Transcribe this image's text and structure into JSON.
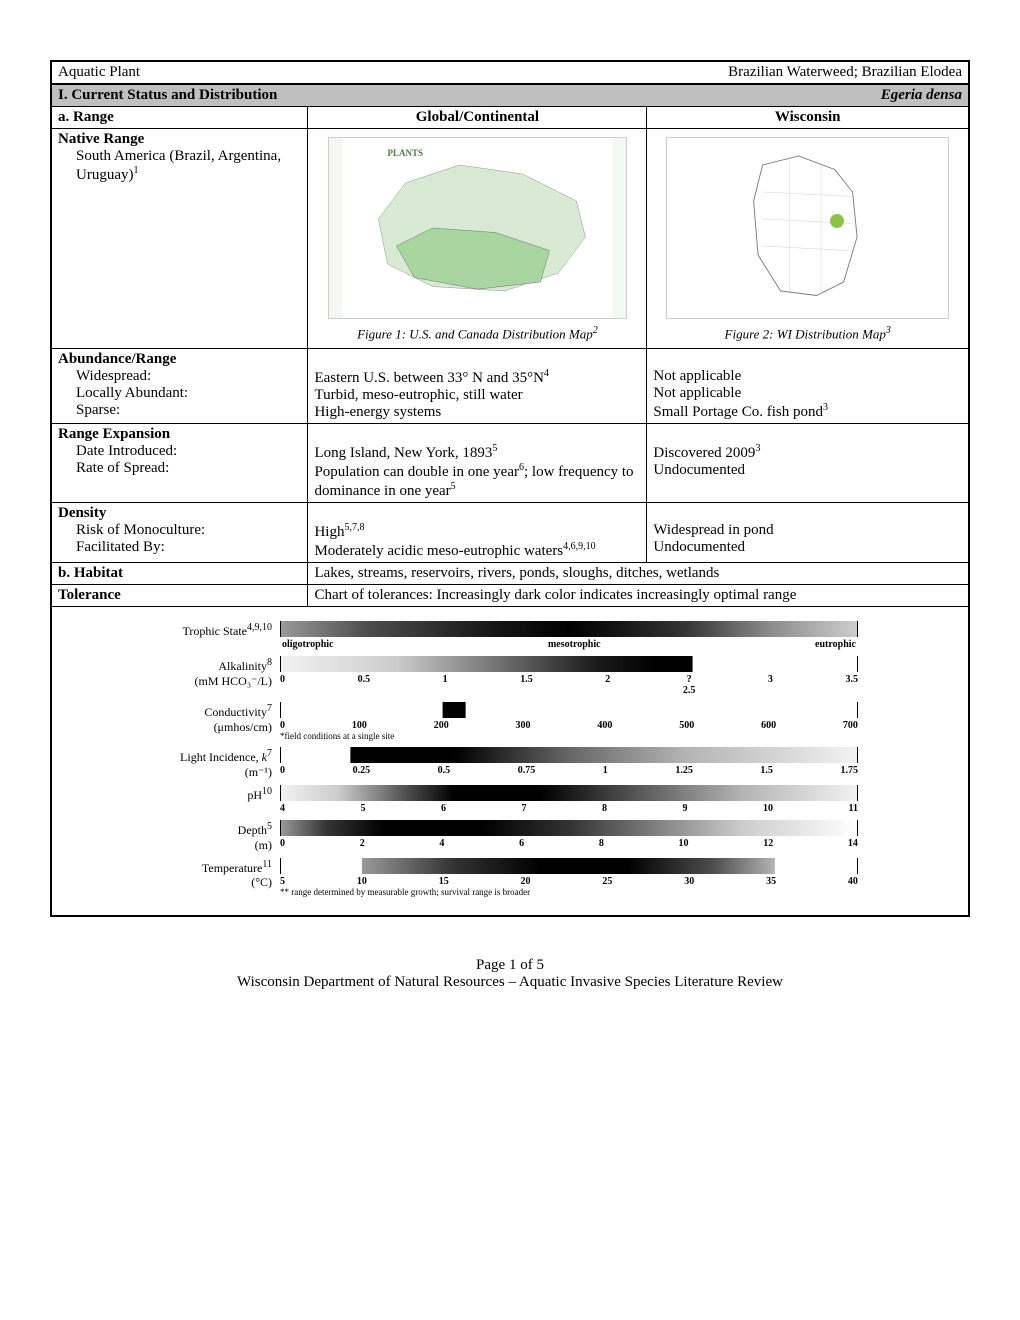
{
  "header": {
    "left": "Aquatic Plant",
    "right": "Brazilian Waterweed; Brazilian Elodea"
  },
  "grayHeader": {
    "left": "I. Current Status and Distribution",
    "right": "Egeria densa"
  },
  "colHeads": {
    "c1": "a. Range",
    "c2": "Global/Continental",
    "c3": "Wisconsin"
  },
  "nativeRange": {
    "label": "Native Range",
    "text": "South America (Brazil, Argentina, Uruguay)",
    "sup": "1"
  },
  "fig1": {
    "caption": "Figure 1: U.S. and Canada Distribution Map",
    "sup": "2",
    "alt": "US/Canada map"
  },
  "fig2": {
    "caption": "Figure 2: WI Distribution Map",
    "sup": "3",
    "alt": "Wisconsin map"
  },
  "abundance": {
    "label": "Abundance/Range",
    "rows": [
      {
        "l": "Widespread:",
        "c2a": "Eastern U.S. between 33° N and 35°N",
        "c2sup": "4",
        "c3": "Not applicable"
      },
      {
        "l": "Locally Abundant:",
        "c2a": "Turbid, meso-eutrophic, still water",
        "c3": "Not applicable"
      },
      {
        "l": "Sparse:",
        "c2a": "High-energy systems",
        "c3": "Small Portage Co. fish pond",
        "c3sup": "3"
      }
    ]
  },
  "rangeExp": {
    "label": "Range Expansion",
    "rows": [
      {
        "l": "Date Introduced:",
        "c2a": "Long Island, New York, 1893",
        "c2sup": "5",
        "c3": "Discovered 2009",
        "c3sup": "3"
      },
      {
        "l": "Rate of Spread:",
        "c2a": "Population can double in one year",
        "c2sup": "6",
        "c2b": "; low frequency to dominance in one year",
        "c2bsup": "5",
        "c3": "Undocumented"
      }
    ]
  },
  "density": {
    "label": "Density",
    "rows": [
      {
        "l": "Risk of Monoculture:",
        "c2a": "High",
        "c2sup": "5,7,8",
        "c3": "Widespread in pond"
      },
      {
        "l": "Facilitated By:",
        "c2a": "Moderately acidic meso-eutrophic waters",
        "c2sup": "4,6,9,10",
        "c3": "Undocumented"
      }
    ]
  },
  "habitat": {
    "label": "b. Habitat",
    "text": "Lakes, streams, reservoirs, rivers, ponds, sloughs, ditches, wetlands"
  },
  "tolerance": {
    "label": "Tolerance",
    "text": "Chart of tolerances: Increasingly dark color indicates increasingly optimal range"
  },
  "tolChart": {
    "background": "#ffffff",
    "items": [
      {
        "label": "Trophic State",
        "sup": "4,9,10",
        "sub": "",
        "type": "categorical",
        "catLabels": [
          "oligotrophic",
          "mesotrophic",
          "eutrophic"
        ],
        "gradient": [
          [
            0,
            60
          ],
          [
            15,
            30
          ],
          [
            35,
            10
          ],
          [
            50,
            0
          ],
          [
            70,
            20
          ],
          [
            85,
            55
          ],
          [
            100,
            80
          ]
        ]
      },
      {
        "label": "Alkalinity",
        "sup": "8",
        "sub": "(mM HCO₃⁻/L)",
        "ticks": [
          "0",
          "0.5",
          "1",
          "1.5",
          "2",
          "2.5",
          "3",
          "3.5"
        ],
        "question": "?",
        "gradient": [
          [
            0,
            95
          ],
          [
            20,
            80
          ],
          [
            40,
            40
          ],
          [
            55,
            10
          ],
          [
            65,
            0
          ],
          [
            71.4,
            0
          ],
          [
            71.5,
            100
          ],
          [
            100,
            100
          ]
        ]
      },
      {
        "label": "Conductivity",
        "sup": "7",
        "sub": "(μmhos/cm)",
        "ticks": [
          "0",
          "100",
          "200",
          "300",
          "400",
          "500",
          "600",
          "700"
        ],
        "note": "*field conditions at a single site",
        "gradient": [
          [
            0,
            100
          ],
          [
            28,
            100
          ],
          [
            28.1,
            0
          ],
          [
            32,
            0
          ],
          [
            32.1,
            100
          ],
          [
            100,
            100
          ]
        ]
      },
      {
        "label": "Light Incidence, ",
        "labelItalic": "k",
        "sup": "7",
        "sub": "(m⁻¹)",
        "ticks": [
          "0",
          "0.25",
          "0.5",
          "0.75",
          "1",
          "1.25",
          "1.5",
          "1.75"
        ],
        "gradient": [
          [
            0,
            100
          ],
          [
            12,
            100
          ],
          [
            12.1,
            0
          ],
          [
            30,
            0
          ],
          [
            50,
            40
          ],
          [
            70,
            70
          ],
          [
            100,
            95
          ]
        ]
      },
      {
        "label": "pH",
        "sup": "10",
        "sub": "",
        "ticks": [
          "4",
          "5",
          "6",
          "7",
          "8",
          "9",
          "10",
          "11"
        ],
        "gradient": [
          [
            0,
            95
          ],
          [
            10,
            80
          ],
          [
            22,
            30
          ],
          [
            30,
            0
          ],
          [
            45,
            0
          ],
          [
            60,
            30
          ],
          [
            80,
            70
          ],
          [
            100,
            95
          ]
        ]
      },
      {
        "label": "Depth",
        "sup": "5",
        "sub": "(m)",
        "ticks": [
          "0",
          "2",
          "4",
          "6",
          "8",
          "10",
          "12",
          "14"
        ],
        "gradient": [
          [
            0,
            60
          ],
          [
            8,
            20
          ],
          [
            18,
            0
          ],
          [
            35,
            0
          ],
          [
            50,
            20
          ],
          [
            65,
            50
          ],
          [
            80,
            80
          ],
          [
            100,
            100
          ]
        ]
      },
      {
        "label": "Temperature",
        "sup": "11",
        "sub": "(°C)",
        "ticks": [
          "5",
          "10",
          "15",
          "20",
          "25",
          "30",
          "35",
          "40"
        ],
        "note": "** range determined by measurable growth; survival range is broader",
        "gradient": [
          [
            0,
            100
          ],
          [
            14,
            100
          ],
          [
            14.1,
            60
          ],
          [
            30,
            20
          ],
          [
            45,
            0
          ],
          [
            60,
            0
          ],
          [
            75,
            30
          ],
          [
            85.7,
            70
          ],
          [
            85.8,
            100
          ],
          [
            100,
            100
          ]
        ]
      }
    ]
  },
  "footer": {
    "page": "Page 1 of 5",
    "org": "Wisconsin Department of Natural Resources – Aquatic Invasive Species Literature Review"
  }
}
